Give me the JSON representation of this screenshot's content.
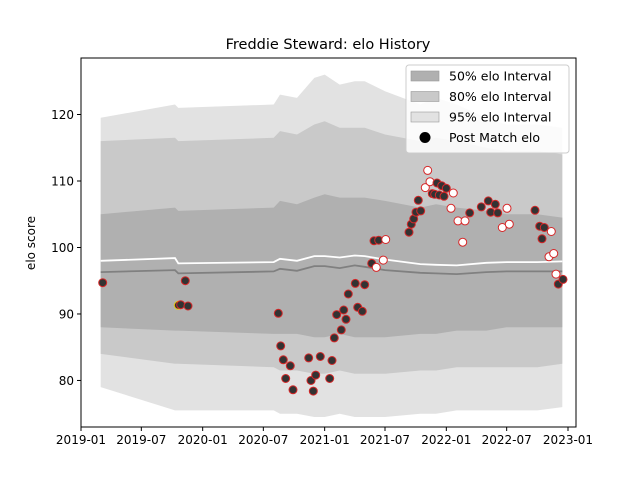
{
  "chart_data": {
    "type": "scatter",
    "title": "Freddie Steward: elo History",
    "xlabel": "",
    "ylabel": "elo score",
    "xlim": [
      "2019-01-01",
      "2023-01-25"
    ],
    "ylim": [
      73,
      128.5
    ],
    "x_ticks": [
      "2019-01",
      "2019-07",
      "2020-01",
      "2020-07",
      "2021-01",
      "2021-07",
      "2022-01",
      "2022-07",
      "2023-01"
    ],
    "y_ticks": [
      80,
      90,
      100,
      110,
      120
    ],
    "legend": {
      "position": "top-right",
      "entries": [
        "50% elo Interval",
        "80% elo Interval",
        "95% elo Interval",
        "Post Match elo"
      ]
    },
    "colors": {
      "band50": "#b0b0b0",
      "band80": "#c9c9c9",
      "band95": "#e2e2e2",
      "median_line": "#808080",
      "mean_line": "#ffffff",
      "marker_fill_dark": "#333333",
      "marker_fill_light": "#ffffff",
      "marker_edge": "#d62728",
      "marker_edge_alt": "#e8c414"
    },
    "intervals": {
      "dates": [
        "2019-03-01",
        "2019-10-10",
        "2019-10-20",
        "2020-08-01",
        "2020-08-20",
        "2020-10-10",
        "2020-12-01",
        "2021-01-01",
        "2021-02-15",
        "2021-04-01",
        "2021-05-01",
        "2021-07-01",
        "2021-10-15",
        "2021-12-01",
        "2022-02-01",
        "2022-05-01",
        "2022-07-01",
        "2022-10-01",
        "2022-12-15"
      ],
      "band95_low": [
        79,
        75.5,
        75.5,
        75.5,
        75,
        75,
        74.5,
        74.5,
        75,
        74.5,
        74.5,
        74.5,
        75,
        75,
        75.5,
        75.5,
        75.5,
        75.5,
        76
      ],
      "band95_high": [
        119.5,
        121.5,
        121,
        121.5,
        123,
        122.5,
        125.5,
        126,
        124.5,
        125,
        125,
        123.5,
        121.5,
        122.5,
        121.5,
        119.5,
        118.5,
        118.5,
        118
      ],
      "band80_low": [
        84,
        82.5,
        82.5,
        82,
        81.5,
        81.5,
        81,
        81,
        81.5,
        81,
        81,
        81,
        81.5,
        81.5,
        82,
        82,
        82,
        82,
        82.5
      ],
      "band80_high": [
        116,
        116.5,
        116,
        116.5,
        117.5,
        117,
        118.5,
        119,
        118,
        118,
        118,
        117,
        116,
        116.5,
        116,
        115,
        114.5,
        114.5,
        114
      ],
      "band50_low": [
        88,
        87.5,
        87.5,
        87,
        87,
        87,
        86.5,
        86.5,
        87,
        86.5,
        86.5,
        86.5,
        87,
        87,
        87.5,
        87.5,
        88,
        88,
        88
      ],
      "band50_high": [
        105,
        106,
        105.5,
        106,
        107,
        106.5,
        107.5,
        108,
        107.5,
        107.5,
        107.5,
        107,
        106,
        106.5,
        106,
        105.5,
        105,
        105,
        104.5
      ],
      "median": [
        96.3,
        96.6,
        96.1,
        96.4,
        96.8,
        96.5,
        97.2,
        97.2,
        96.9,
        97.3,
        97.1,
        96.6,
        96.2,
        96.1,
        96,
        96.3,
        96.4,
        96.4,
        96.4
      ],
      "mean": [
        98,
        98.4,
        97.6,
        97.8,
        98.3,
        98,
        98.7,
        98.7,
        98.5,
        98.8,
        98.7,
        98.2,
        97.5,
        97.4,
        97.3,
        97.7,
        97.8,
        97.8,
        97.9
      ]
    },
    "series": [
      {
        "name": "Post Match elo",
        "points": [
          {
            "x": "2019-03-07",
            "y": 94.7,
            "fill": "dark"
          },
          {
            "x": "2019-10-20",
            "y": 91.3,
            "fill": "dark",
            "edge": "alt"
          },
          {
            "x": "2019-10-27",
            "y": 91.4,
            "fill": "dark"
          },
          {
            "x": "2019-11-10",
            "y": 95.0,
            "fill": "dark"
          },
          {
            "x": "2019-11-18",
            "y": 91.2,
            "fill": "dark"
          },
          {
            "x": "2020-08-15",
            "y": 90.1,
            "fill": "dark"
          },
          {
            "x": "2020-08-22",
            "y": 85.2,
            "fill": "dark"
          },
          {
            "x": "2020-08-30",
            "y": 83.1,
            "fill": "dark"
          },
          {
            "x": "2020-09-06",
            "y": 80.3,
            "fill": "dark"
          },
          {
            "x": "2020-09-20",
            "y": 82.2,
            "fill": "dark"
          },
          {
            "x": "2020-09-28",
            "y": 78.6,
            "fill": "dark"
          },
          {
            "x": "2020-11-14",
            "y": 83.4,
            "fill": "dark"
          },
          {
            "x": "2020-11-21",
            "y": 80.0,
            "fill": "dark"
          },
          {
            "x": "2020-11-28",
            "y": 78.4,
            "fill": "dark"
          },
          {
            "x": "2020-12-05",
            "y": 80.8,
            "fill": "dark"
          },
          {
            "x": "2020-12-19",
            "y": 83.6,
            "fill": "dark"
          },
          {
            "x": "2021-01-16",
            "y": 80.3,
            "fill": "dark"
          },
          {
            "x": "2021-01-23",
            "y": 83.0,
            "fill": "dark"
          },
          {
            "x": "2021-01-30",
            "y": 86.4,
            "fill": "dark"
          },
          {
            "x": "2021-02-06",
            "y": 89.9,
            "fill": "dark"
          },
          {
            "x": "2021-02-20",
            "y": 87.6,
            "fill": "dark"
          },
          {
            "x": "2021-02-27",
            "y": 90.6,
            "fill": "dark"
          },
          {
            "x": "2021-03-06",
            "y": 89.2,
            "fill": "dark"
          },
          {
            "x": "2021-03-13",
            "y": 93.0,
            "fill": "dark"
          },
          {
            "x": "2021-04-03",
            "y": 94.6,
            "fill": "dark"
          },
          {
            "x": "2021-04-10",
            "y": 91.0,
            "fill": "dark"
          },
          {
            "x": "2021-04-24",
            "y": 90.4,
            "fill": "dark"
          },
          {
            "x": "2021-05-01",
            "y": 94.4,
            "fill": "dark"
          },
          {
            "x": "2021-05-22",
            "y": 97.6,
            "fill": "dark"
          },
          {
            "x": "2021-05-29",
            "y": 101.0,
            "fill": "dark"
          },
          {
            "x": "2021-06-05",
            "y": 97.0,
            "fill": "light"
          },
          {
            "x": "2021-06-12",
            "y": 101.1,
            "fill": "dark"
          },
          {
            "x": "2021-06-26",
            "y": 98.1,
            "fill": "light"
          },
          {
            "x": "2021-07-03",
            "y": 101.2,
            "fill": "light"
          },
          {
            "x": "2021-09-11",
            "y": 102.3,
            "fill": "dark"
          },
          {
            "x": "2021-09-18",
            "y": 103.5,
            "fill": "dark"
          },
          {
            "x": "2021-09-25",
            "y": 104.3,
            "fill": "dark"
          },
          {
            "x": "2021-10-02",
            "y": 105.3,
            "fill": "dark"
          },
          {
            "x": "2021-10-09",
            "y": 107.1,
            "fill": "dark"
          },
          {
            "x": "2021-10-16",
            "y": 105.5,
            "fill": "dark"
          },
          {
            "x": "2021-10-30",
            "y": 109.0,
            "fill": "light"
          },
          {
            "x": "2021-11-06",
            "y": 111.6,
            "fill": "light"
          },
          {
            "x": "2021-11-13",
            "y": 109.9,
            "fill": "light"
          },
          {
            "x": "2021-11-20",
            "y": 108.1,
            "fill": "dark"
          },
          {
            "x": "2021-11-27",
            "y": 108.0,
            "fill": "dark"
          },
          {
            "x": "2021-12-04",
            "y": 109.7,
            "fill": "dark"
          },
          {
            "x": "2021-12-11",
            "y": 107.9,
            "fill": "dark"
          },
          {
            "x": "2021-12-18",
            "y": 109.3,
            "fill": "dark"
          },
          {
            "x": "2021-12-25",
            "y": 107.7,
            "fill": "dark"
          },
          {
            "x": "2022-01-01",
            "y": 108.9,
            "fill": "dark"
          },
          {
            "x": "2022-01-15",
            "y": 105.9,
            "fill": "light"
          },
          {
            "x": "2022-01-22",
            "y": 108.2,
            "fill": "light"
          },
          {
            "x": "2022-02-05",
            "y": 104.0,
            "fill": "light"
          },
          {
            "x": "2022-02-19",
            "y": 100.8,
            "fill": "light"
          },
          {
            "x": "2022-02-26",
            "y": 104.0,
            "fill": "light"
          },
          {
            "x": "2022-03-12",
            "y": 105.2,
            "fill": "dark"
          },
          {
            "x": "2022-04-16",
            "y": 106.1,
            "fill": "dark"
          },
          {
            "x": "2022-05-07",
            "y": 107.0,
            "fill": "dark"
          },
          {
            "x": "2022-05-14",
            "y": 105.3,
            "fill": "dark"
          },
          {
            "x": "2022-05-28",
            "y": 106.5,
            "fill": "dark"
          },
          {
            "x": "2022-06-04",
            "y": 105.2,
            "fill": "dark"
          },
          {
            "x": "2022-06-18",
            "y": 103.0,
            "fill": "light"
          },
          {
            "x": "2022-07-02",
            "y": 105.9,
            "fill": "light"
          },
          {
            "x": "2022-07-09",
            "y": 103.5,
            "fill": "light"
          },
          {
            "x": "2022-09-24",
            "y": 105.6,
            "fill": "dark"
          },
          {
            "x": "2022-10-08",
            "y": 103.2,
            "fill": "dark"
          },
          {
            "x": "2022-10-15",
            "y": 101.3,
            "fill": "dark"
          },
          {
            "x": "2022-10-22",
            "y": 103.0,
            "fill": "dark"
          },
          {
            "x": "2022-11-05",
            "y": 98.6,
            "fill": "light"
          },
          {
            "x": "2022-11-12",
            "y": 102.4,
            "fill": "light"
          },
          {
            "x": "2022-11-19",
            "y": 99.1,
            "fill": "light"
          },
          {
            "x": "2022-11-26",
            "y": 96.0,
            "fill": "light"
          },
          {
            "x": "2022-12-03",
            "y": 94.5,
            "fill": "dark"
          },
          {
            "x": "2022-12-17",
            "y": 95.2,
            "fill": "dark"
          }
        ]
      }
    ]
  }
}
